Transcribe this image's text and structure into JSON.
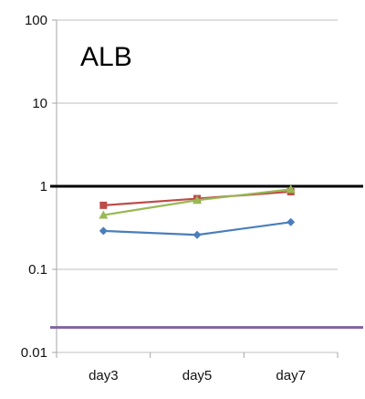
{
  "chart_data": {
    "type": "line",
    "title": "ALB",
    "xlabel": "",
    "ylabel": "",
    "yscale": "log",
    "ylim": [
      0.01,
      100
    ],
    "y_ticks": [
      "0.01",
      "0.1",
      "1",
      "10",
      "100"
    ],
    "categories": [
      "day3",
      "day5",
      "day7"
    ],
    "grid": "horizontal",
    "legend": "none",
    "series": [
      {
        "color": "#4a7ebb",
        "marker": "diamond",
        "values": [
          0.29,
          0.26,
          0.37
        ]
      },
      {
        "color": "#be4b48",
        "marker": "square",
        "values": [
          0.59,
          0.71,
          0.86
        ]
      },
      {
        "color": "#98b954",
        "marker": "triangle",
        "values": [
          0.45,
          0.68,
          0.92
        ]
      }
    ],
    "reference_lines": [
      {
        "value": 1,
        "color": "#000000"
      },
      {
        "value": 0.02,
        "color": "#8064a2"
      }
    ]
  }
}
